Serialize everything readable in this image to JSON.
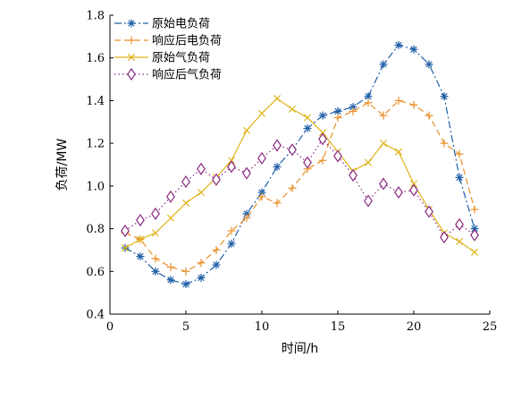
{
  "chart_data": {
    "type": "line",
    "xlabel": "时间/h",
    "ylabel": "负荷/MW",
    "xlim": [
      0,
      25
    ],
    "ylim": [
      0.4,
      1.8
    ],
    "xticks": [
      0,
      5,
      10,
      15,
      20,
      25
    ],
    "yticks": [
      0.4,
      0.6,
      0.8,
      1.0,
      1.2,
      1.4,
      1.6,
      1.8
    ],
    "ytick_labels": [
      "0.4",
      "0.6",
      "0.8",
      "1.0",
      "1.2",
      "1.4",
      "1.6",
      "1.8"
    ],
    "grid": false,
    "legend_position": "top-left",
    "x": [
      1,
      2,
      3,
      4,
      5,
      6,
      7,
      8,
      9,
      10,
      11,
      12,
      13,
      14,
      15,
      16,
      17,
      18,
      19,
      20,
      21,
      22,
      23,
      24
    ],
    "series": [
      {
        "name": "原始电负荷",
        "color": "#1f5fa8",
        "dash": "dashdot",
        "marker": "asterisk",
        "values": [
          0.71,
          0.67,
          0.6,
          0.56,
          0.54,
          0.57,
          0.63,
          0.73,
          0.87,
          0.97,
          1.09,
          1.17,
          1.27,
          1.33,
          1.35,
          1.37,
          1.42,
          1.57,
          1.66,
          1.64,
          1.57,
          1.42,
          1.04,
          0.8
        ]
      },
      {
        "name": "响应后电负荷",
        "color": "#e8912a",
        "dash": "dashed",
        "marker": "plus",
        "values": [
          0.78,
          0.75,
          0.66,
          0.62,
          0.6,
          0.64,
          0.7,
          0.79,
          0.85,
          0.95,
          0.92,
          0.99,
          1.08,
          1.12,
          1.32,
          1.35,
          1.39,
          1.33,
          1.4,
          1.38,
          1.33,
          1.2,
          1.15,
          0.89
        ]
      },
      {
        "name": "原始气负荷",
        "color": "#e0b31a",
        "dash": "solid",
        "marker": "x",
        "values": [
          0.71,
          0.75,
          0.78,
          0.85,
          0.92,
          0.97,
          1.04,
          1.12,
          1.26,
          1.34,
          1.41,
          1.36,
          1.32,
          1.25,
          1.16,
          1.07,
          1.11,
          1.2,
          1.16,
          1.01,
          0.89,
          0.78,
          0.74,
          0.69
        ]
      },
      {
        "name": "响应后气负荷",
        "color": "#8a2a80",
        "dash": "dotted",
        "marker": "diamond",
        "values": [
          0.79,
          0.84,
          0.87,
          0.95,
          1.02,
          1.08,
          1.03,
          1.09,
          1.06,
          1.13,
          1.19,
          1.17,
          1.11,
          1.22,
          1.14,
          1.05,
          0.93,
          1.01,
          0.97,
          0.98,
          0.88,
          0.76,
          0.82,
          0.77
        ]
      }
    ]
  }
}
